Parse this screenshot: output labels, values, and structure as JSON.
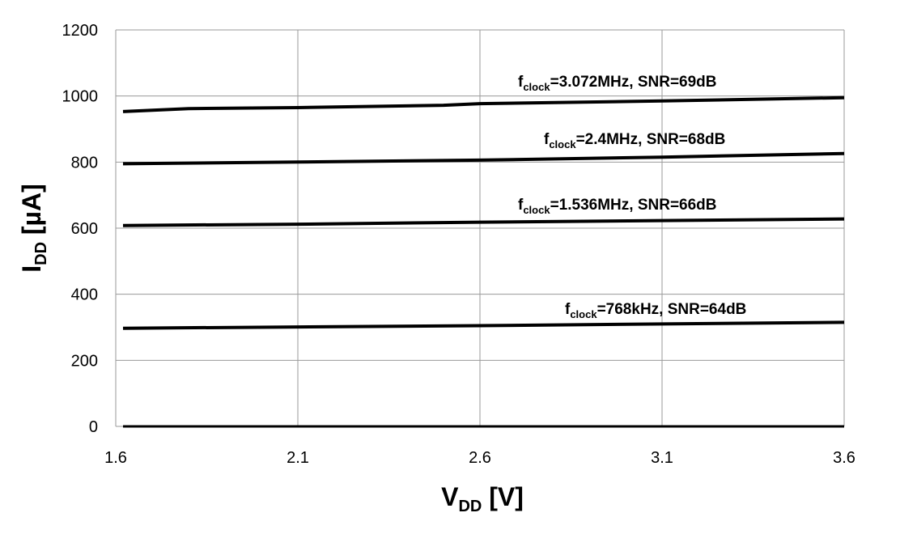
{
  "chart_data": {
    "type": "line",
    "title": "",
    "xlabel": {
      "main": "V",
      "sub": "DD",
      "unit": " [V]"
    },
    "ylabel": {
      "main": "I",
      "sub": "DD",
      "unit": " [µA]"
    },
    "xlim": [
      1.6,
      3.6
    ],
    "ylim": [
      0,
      1200
    ],
    "xticks": [
      1.6,
      2.1,
      2.6,
      3.1,
      3.6
    ],
    "xtick_labels": [
      "1.6",
      "2.1",
      "2.6",
      "3.1",
      "3.6"
    ],
    "yticks": [
      0,
      200,
      400,
      600,
      800,
      1000,
      1200
    ],
    "ytick_labels": [
      "0",
      "200",
      "400",
      "600",
      "800",
      "1000",
      "1200"
    ],
    "grid": true,
    "legend": "none",
    "line_color": "#000000",
    "grid_color": "#9a9a9a",
    "series": [
      {
        "label": {
          "f": "f",
          "sub": "clock",
          "rest": "=3.072MHz, SNR=69dB"
        },
        "x": [
          1.62,
          1.8,
          2.1,
          2.5,
          2.6,
          3.1,
          3.6
        ],
        "y": [
          953,
          962,
          965,
          972,
          977,
          985,
          995
        ]
      },
      {
        "label": {
          "f": "f",
          "sub": "clock",
          "rest": "=2.4MHz, SNR=68dB"
        },
        "x": [
          1.62,
          2.1,
          2.6,
          3.1,
          3.6
        ],
        "y": [
          795,
          800,
          806,
          815,
          826
        ]
      },
      {
        "label": {
          "f": "f",
          "sub": "clock",
          "rest": "=1.536MHz, SNR=66dB"
        },
        "x": [
          1.62,
          2.1,
          2.6,
          3.1,
          3.6
        ],
        "y": [
          608,
          612,
          618,
          623,
          628
        ]
      },
      {
        "label": {
          "f": "f",
          "sub": "clock",
          "rest": "=768kHz, SNR=64dB"
        },
        "x": [
          1.62,
          2.1,
          2.6,
          3.1,
          3.6
        ],
        "y": [
          297,
          301,
          305,
          310,
          315
        ]
      },
      {
        "label": null,
        "x": [
          1.62,
          3.6
        ],
        "y": [
          0,
          0
        ]
      }
    ]
  }
}
